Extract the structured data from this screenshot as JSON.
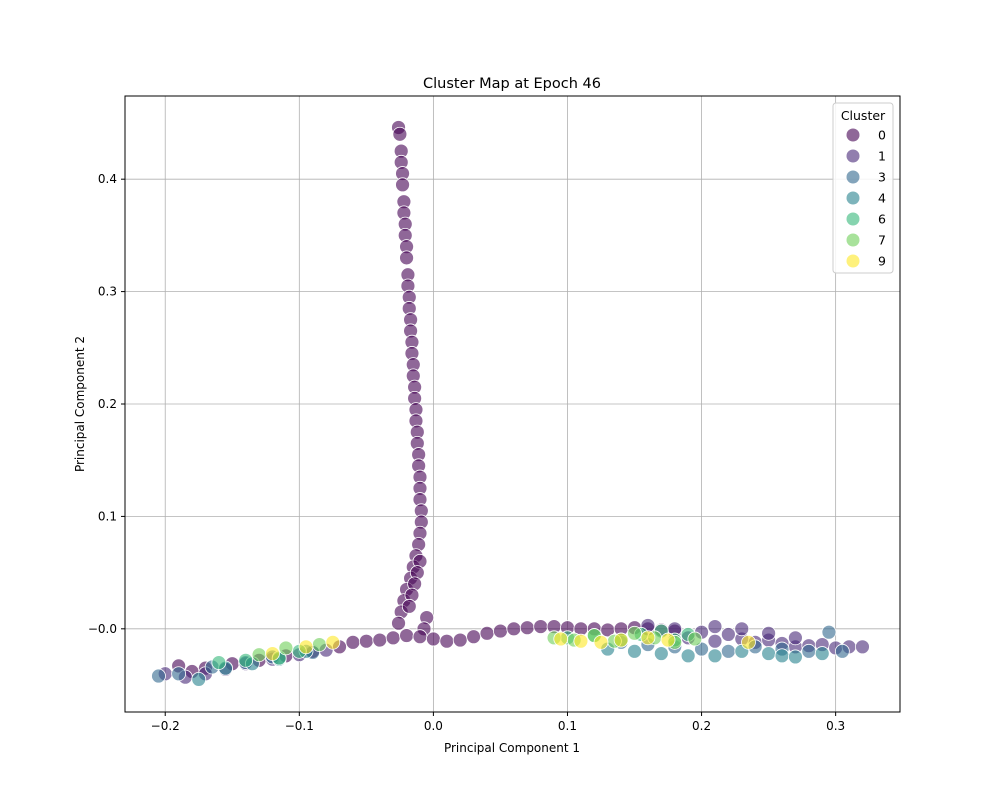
{
  "chart_data": {
    "type": "scatter",
    "title": "Cluster Map at Epoch 46",
    "xlabel": "Principal Component 1",
    "ylabel": "Principal Component 2",
    "xlim": [
      -0.23,
      0.348
    ],
    "ylim": [
      -0.074,
      0.474
    ],
    "xticks": [
      -0.2,
      -0.1,
      0.0,
      0.1,
      0.2,
      0.3
    ],
    "xtick_labels": [
      "−0.2",
      "−0.1",
      "0.0",
      "0.1",
      "0.2",
      "0.3"
    ],
    "yticks": [
      0.0,
      0.1,
      0.2,
      0.3,
      0.4
    ],
    "ytick_labels": [
      "−0.0",
      "0.1",
      "0.2",
      "0.3",
      "0.4"
    ],
    "grid": true,
    "marker_alpha": 0.6,
    "legend": {
      "title": "Cluster",
      "placement": "top-right",
      "entries": [
        {
          "label": "0",
          "color": "#440154"
        },
        {
          "label": "1",
          "color": "#482878"
        },
        {
          "label": "3",
          "color": "#31688e"
        },
        {
          "label": "4",
          "color": "#26828e"
        },
        {
          "label": "6",
          "color": "#35b779"
        },
        {
          "label": "7",
          "color": "#6ece58"
        },
        {
          "label": "9",
          "color": "#fde725"
        }
      ]
    },
    "series": [
      {
        "name": "0",
        "color": "#440154",
        "x": [
          -0.026,
          -0.025,
          -0.024,
          -0.024,
          -0.023,
          -0.023,
          -0.022,
          -0.022,
          -0.021,
          -0.021,
          -0.02,
          -0.02,
          -0.019,
          -0.019,
          -0.018,
          -0.018,
          -0.017,
          -0.017,
          -0.016,
          -0.016,
          -0.015,
          -0.015,
          -0.014,
          -0.014,
          -0.013,
          -0.013,
          -0.012,
          -0.012,
          -0.011,
          -0.011,
          -0.01,
          -0.01,
          -0.01,
          -0.009,
          -0.009,
          -0.01,
          -0.011,
          -0.013,
          -0.015,
          -0.017,
          -0.02,
          -0.022,
          -0.024,
          -0.026,
          -0.01,
          -0.012,
          -0.014,
          -0.016,
          -0.018,
          -0.005,
          -0.007,
          -0.06,
          -0.05,
          -0.04,
          -0.03,
          -0.02,
          -0.01,
          0.0,
          0.01,
          0.02,
          0.03,
          0.04,
          0.05,
          0.06,
          0.07,
          0.08,
          0.09,
          0.1,
          0.11,
          0.12,
          0.13,
          0.14,
          0.15,
          0.16,
          0.17,
          0.18,
          -0.19,
          -0.18,
          -0.17,
          -0.15,
          -0.13,
          -0.11,
          -0.09,
          -0.07
        ],
        "y": [
          0.446,
          0.44,
          0.425,
          0.415,
          0.405,
          0.395,
          0.38,
          0.37,
          0.36,
          0.35,
          0.34,
          0.33,
          0.315,
          0.305,
          0.295,
          0.285,
          0.275,
          0.265,
          0.255,
          0.245,
          0.235,
          0.225,
          0.215,
          0.205,
          0.195,
          0.185,
          0.175,
          0.165,
          0.155,
          0.145,
          0.135,
          0.125,
          0.115,
          0.105,
          0.095,
          0.085,
          0.075,
          0.065,
          0.055,
          0.045,
          0.035,
          0.025,
          0.015,
          0.005,
          0.06,
          0.05,
          0.04,
          0.03,
          0.02,
          0.01,
          0.0,
          -0.012,
          -0.011,
          -0.01,
          -0.008,
          -0.006,
          -0.007,
          -0.009,
          -0.011,
          -0.01,
          -0.007,
          -0.004,
          -0.002,
          0.0,
          0.001,
          0.002,
          0.002,
          0.001,
          0.0,
          0.0,
          -0.001,
          0.0,
          0.001,
          0.0,
          -0.001,
          -0.002,
          -0.033,
          -0.038,
          -0.035,
          -0.031,
          -0.028,
          -0.024,
          -0.02,
          -0.016
        ]
      },
      {
        "name": "1",
        "color": "#482878",
        "x": [
          0.16,
          0.18,
          0.2,
          0.21,
          0.22,
          0.23,
          0.24,
          0.25,
          0.26,
          0.27,
          0.28,
          0.29,
          0.3,
          0.31,
          0.32,
          0.19,
          0.21,
          0.23,
          0.25,
          0.27,
          -0.2,
          -0.185,
          -0.17,
          -0.155,
          -0.14,
          -0.12,
          -0.1,
          -0.08
        ],
        "y": [
          0.003,
          0.0,
          -0.003,
          0.002,
          -0.005,
          -0.009,
          -0.012,
          -0.01,
          -0.013,
          -0.016,
          -0.015,
          -0.014,
          -0.017,
          -0.016,
          -0.016,
          -0.008,
          -0.011,
          0.0,
          -0.004,
          -0.008,
          -0.04,
          -0.043,
          -0.04,
          -0.036,
          -0.031,
          -0.027,
          -0.023,
          -0.019
        ]
      },
      {
        "name": "3",
        "color": "#31688e",
        "x": [
          0.14,
          0.16,
          0.18,
          0.2,
          0.22,
          0.24,
          0.26,
          0.28,
          0.295,
          0.305,
          -0.205,
          -0.19,
          -0.165,
          -0.14,
          -0.12,
          -0.09
        ],
        "y": [
          -0.012,
          -0.014,
          -0.016,
          -0.018,
          -0.02,
          -0.016,
          -0.018,
          -0.02,
          -0.003,
          -0.02,
          -0.042,
          -0.04,
          -0.034,
          -0.03,
          -0.025,
          -0.021
        ]
      },
      {
        "name": "4",
        "color": "#26828e",
        "x": [
          0.13,
          0.15,
          0.17,
          0.19,
          0.21,
          0.23,
          0.25,
          0.26,
          0.27,
          0.29,
          -0.175,
          -0.155,
          -0.135,
          -0.115,
          -0.095
        ],
        "y": [
          -0.018,
          -0.02,
          -0.022,
          -0.024,
          -0.024,
          -0.02,
          -0.022,
          -0.024,
          -0.025,
          -0.022,
          -0.045,
          -0.035,
          -0.031,
          -0.027,
          -0.02
        ]
      },
      {
        "name": "6",
        "color": "#35b779",
        "x": [
          0.1,
          0.12,
          0.14,
          0.155,
          0.17,
          0.18,
          0.19,
          -0.16,
          -0.14,
          -0.115,
          -0.1
        ],
        "y": [
          -0.008,
          -0.006,
          -0.01,
          -0.005,
          -0.002,
          -0.01,
          -0.005,
          -0.03,
          -0.028,
          -0.026,
          -0.02
        ]
      },
      {
        "name": "7",
        "color": "#6ece58",
        "x": [
          0.09,
          0.105,
          0.12,
          0.135,
          0.15,
          0.165,
          0.18,
          0.195,
          -0.13,
          -0.11,
          -0.085
        ],
        "y": [
          -0.008,
          -0.01,
          -0.006,
          -0.011,
          -0.004,
          -0.008,
          -0.012,
          -0.009,
          -0.023,
          -0.017,
          -0.014
        ]
      },
      {
        "name": "9",
        "color": "#fde725",
        "x": [
          0.095,
          0.11,
          0.125,
          0.14,
          0.16,
          0.175,
          0.235,
          -0.075,
          -0.095,
          -0.12
        ],
        "y": [
          -0.009,
          -0.011,
          -0.012,
          -0.01,
          -0.008,
          -0.01,
          -0.012,
          -0.012,
          -0.016,
          -0.022
        ]
      }
    ]
  }
}
